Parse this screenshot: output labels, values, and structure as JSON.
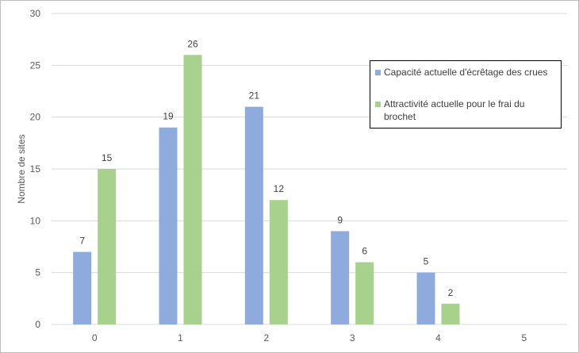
{
  "chart_data": {
    "type": "bar",
    "categories": [
      "0",
      "1",
      "2",
      "3",
      "4",
      "5"
    ],
    "series": [
      {
        "name": "Capacité actuelle d'écrêtage des crues",
        "values": [
          7,
          19,
          21,
          9,
          5,
          null
        ],
        "labels": [
          "7",
          "19",
          "21",
          "9",
          "5",
          ""
        ],
        "color": "#8faadc"
      },
      {
        "name": "Attractivité actuelle pour le frai du brochet",
        "values": [
          15,
          26,
          12,
          6,
          2,
          null
        ],
        "labels": [
          "15",
          "26",
          "12",
          "6",
          "2",
          ""
        ],
        "color": "#a9d18e"
      }
    ],
    "ylabel": "Nombre de sites",
    "ylim": [
      0,
      30
    ],
    "yticks": [
      "0",
      "5",
      "10",
      "15",
      "20",
      "25",
      "30"
    ],
    "grid": true,
    "legend": "top-right"
  }
}
